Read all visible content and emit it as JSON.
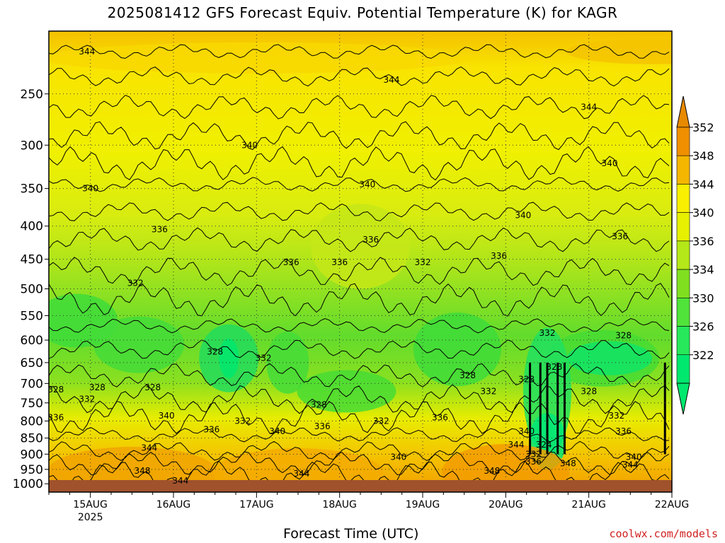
{
  "chart_data": {
    "type": "heatmap",
    "title": "2025081412 GFS Forecast Equiv. Potential Temperature (K) for KAGR",
    "xlabel": "Forecast Time (UTC)",
    "ylabel": "",
    "y_axis": {
      "unit": "hPa",
      "inverted": true,
      "scale": "log-pressure",
      "range": [
        1000,
        200
      ],
      "ticks": [
        1000,
        950,
        900,
        850,
        800,
        750,
        700,
        650,
        600,
        550,
        500,
        450,
        400,
        350,
        300,
        250
      ]
    },
    "x_axis": {
      "range": [
        "2025-08-14T12",
        "2025-08-22T00"
      ],
      "ticks": [
        {
          "value": "2025-08-15T00",
          "label": "15AUG",
          "sublabel": "2025"
        },
        {
          "value": "2025-08-16T00",
          "label": "16AUG"
        },
        {
          "value": "2025-08-17T00",
          "label": "17AUG"
        },
        {
          "value": "2025-08-18T00",
          "label": "18AUG"
        },
        {
          "value": "2025-08-19T00",
          "label": "19AUG"
        },
        {
          "value": "2025-08-20T00",
          "label": "20AUG"
        },
        {
          "value": "2025-08-21T00",
          "label": "21AUG"
        },
        {
          "value": "2025-08-22T00",
          "label": "22AUG"
        }
      ]
    },
    "grid": true,
    "grid_style": "dotted",
    "colorbar": {
      "labels": [
        322,
        326,
        330,
        334,
        336,
        340,
        344,
        348,
        352
      ],
      "colors": [
        "#00e86e",
        "#27e85a",
        "#50e43a",
        "#80e020",
        "#b4e818",
        "#e6f000",
        "#f8f000",
        "#f5b600",
        "#f09000",
        "#e88a00"
      ],
      "extend": "both"
    },
    "contour_labels": [
      {
        "t": "2025-08-14T23",
        "p": 215,
        "value": "344"
      },
      {
        "t": "2025-08-18T15",
        "p": 238,
        "value": "344"
      },
      {
        "t": "2025-08-21T00",
        "p": 262,
        "value": "344"
      },
      {
        "t": "2025-08-16T22",
        "p": 300,
        "value": "340"
      },
      {
        "t": "2025-08-15T00",
        "p": 350,
        "value": "340"
      },
      {
        "t": "2025-08-18T08",
        "p": 345,
        "value": "340"
      },
      {
        "t": "2025-08-20T05",
        "p": 385,
        "value": "340"
      },
      {
        "t": "2025-08-21T06",
        "p": 320,
        "value": "340"
      },
      {
        "t": "2025-08-15T20",
        "p": 405,
        "value": "336"
      },
      {
        "t": "2025-08-17T10",
        "p": 455,
        "value": "336"
      },
      {
        "t": "2025-08-18T00",
        "p": 455,
        "value": "336"
      },
      {
        "t": "2025-08-18T09",
        "p": 420,
        "value": "336"
      },
      {
        "t": "2025-08-19T22",
        "p": 445,
        "value": "336"
      },
      {
        "t": "2025-08-21T09",
        "p": 415,
        "value": "336"
      },
      {
        "t": "2025-08-15T13",
        "p": 490,
        "value": "332"
      },
      {
        "t": "2025-08-19T00",
        "p": 455,
        "value": "332"
      },
      {
        "t": "2025-08-20T12",
        "p": 585,
        "value": "332"
      },
      {
        "t": "2025-08-16T12",
        "p": 625,
        "value": "328"
      },
      {
        "t": "2025-08-17T02",
        "p": 640,
        "value": "332"
      },
      {
        "t": "2025-08-14T14",
        "p": 715,
        "value": "328"
      },
      {
        "t": "2025-08-15T02",
        "p": 710,
        "value": "328"
      },
      {
        "t": "2025-08-15T18",
        "p": 710,
        "value": "328"
      },
      {
        "t": "2025-08-17T18",
        "p": 755,
        "value": "328"
      },
      {
        "t": "2025-08-19T13",
        "p": 680,
        "value": "328"
      },
      {
        "t": "2025-08-20T06",
        "p": 690,
        "value": "328"
      },
      {
        "t": "2025-08-20T14",
        "p": 660,
        "value": "328"
      },
      {
        "t": "2025-08-21T00",
        "p": 720,
        "value": "328"
      },
      {
        "t": "2025-08-21T10",
        "p": 590,
        "value": "328"
      },
      {
        "t": "2025-08-19T19",
        "p": 720,
        "value": "332"
      },
      {
        "t": "2025-08-14T23",
        "p": 740,
        "value": "332"
      },
      {
        "t": "2025-08-16T20",
        "p": 800,
        "value": "332"
      },
      {
        "t": "2025-08-18T12",
        "p": 800,
        "value": "332"
      },
      {
        "t": "2025-08-21T08",
        "p": 785,
        "value": "332"
      },
      {
        "t": "2025-08-14T14",
        "p": 790,
        "value": "336"
      },
      {
        "t": "2025-08-15T22",
        "p": 785,
        "value": "340"
      },
      {
        "t": "2025-08-16T11",
        "p": 825,
        "value": "336"
      },
      {
        "t": "2025-08-17T06",
        "p": 830,
        "value": "340"
      },
      {
        "t": "2025-08-17T19",
        "p": 815,
        "value": "336"
      },
      {
        "t": "2025-08-19T05",
        "p": 790,
        "value": "336"
      },
      {
        "t": "2025-08-20T06",
        "p": 830,
        "value": "340"
      },
      {
        "t": "2025-08-21T10",
        "p": 830,
        "value": "336"
      },
      {
        "t": "2025-08-15T17",
        "p": 880,
        "value": "344"
      },
      {
        "t": "2025-08-18T17",
        "p": 910,
        "value": "340"
      },
      {
        "t": "2025-08-20T03",
        "p": 870,
        "value": "344"
      },
      {
        "t": "2025-08-20T08",
        "p": 900,
        "value": "332"
      },
      {
        "t": "2025-08-20T08",
        "p": 925,
        "value": "336"
      },
      {
        "t": "2025-08-20T11",
        "p": 870,
        "value": "324"
      },
      {
        "t": "2025-08-21T13",
        "p": 910,
        "value": "340"
      },
      {
        "t": "2025-08-21T12",
        "p": 935,
        "value": "344"
      },
      {
        "t": "2025-08-15T15",
        "p": 955,
        "value": "348"
      },
      {
        "t": "2025-08-17T13",
        "p": 965,
        "value": "344"
      },
      {
        "t": "2025-08-19T20",
        "p": 955,
        "value": "348"
      },
      {
        "t": "2025-08-20T18",
        "p": 930,
        "value": "348"
      },
      {
        "t": "2025-08-16T02",
        "p": 990,
        "value": "344"
      }
    ]
  },
  "credit": "coolwx.com/models"
}
